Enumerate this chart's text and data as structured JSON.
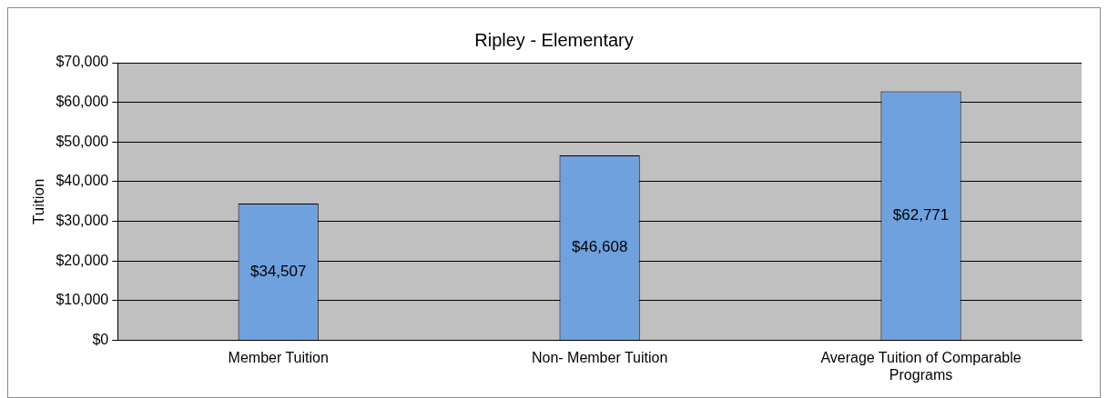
{
  "chart_data": {
    "type": "bar",
    "title": "Ripley - Elementary",
    "ylabel": "Tuition",
    "categories": [
      "Member Tuition",
      "Non- Member Tuition",
      "Average Tuition of Comparable Programs"
    ],
    "values": [
      34507,
      46608,
      62771
    ],
    "color": "#6fa1de",
    "value_labels": [
      "$34,507",
      "$46,608",
      "$62,771"
    ],
    "ylim": [
      0,
      70000
    ],
    "yticks": [
      {
        "value": 0,
        "label": "$0"
      },
      {
        "value": 10000,
        "label": "$10,000"
      },
      {
        "value": 20000,
        "label": "$20,000"
      },
      {
        "value": 30000,
        "label": "$30,000"
      },
      {
        "value": 40000,
        "label": "$40,000"
      },
      {
        "value": 50000,
        "label": "$50,000"
      },
      {
        "value": 60000,
        "label": "$60,000"
      },
      {
        "value": 70000,
        "label": "$70,000"
      }
    ],
    "grid": "y",
    "legend": false
  }
}
